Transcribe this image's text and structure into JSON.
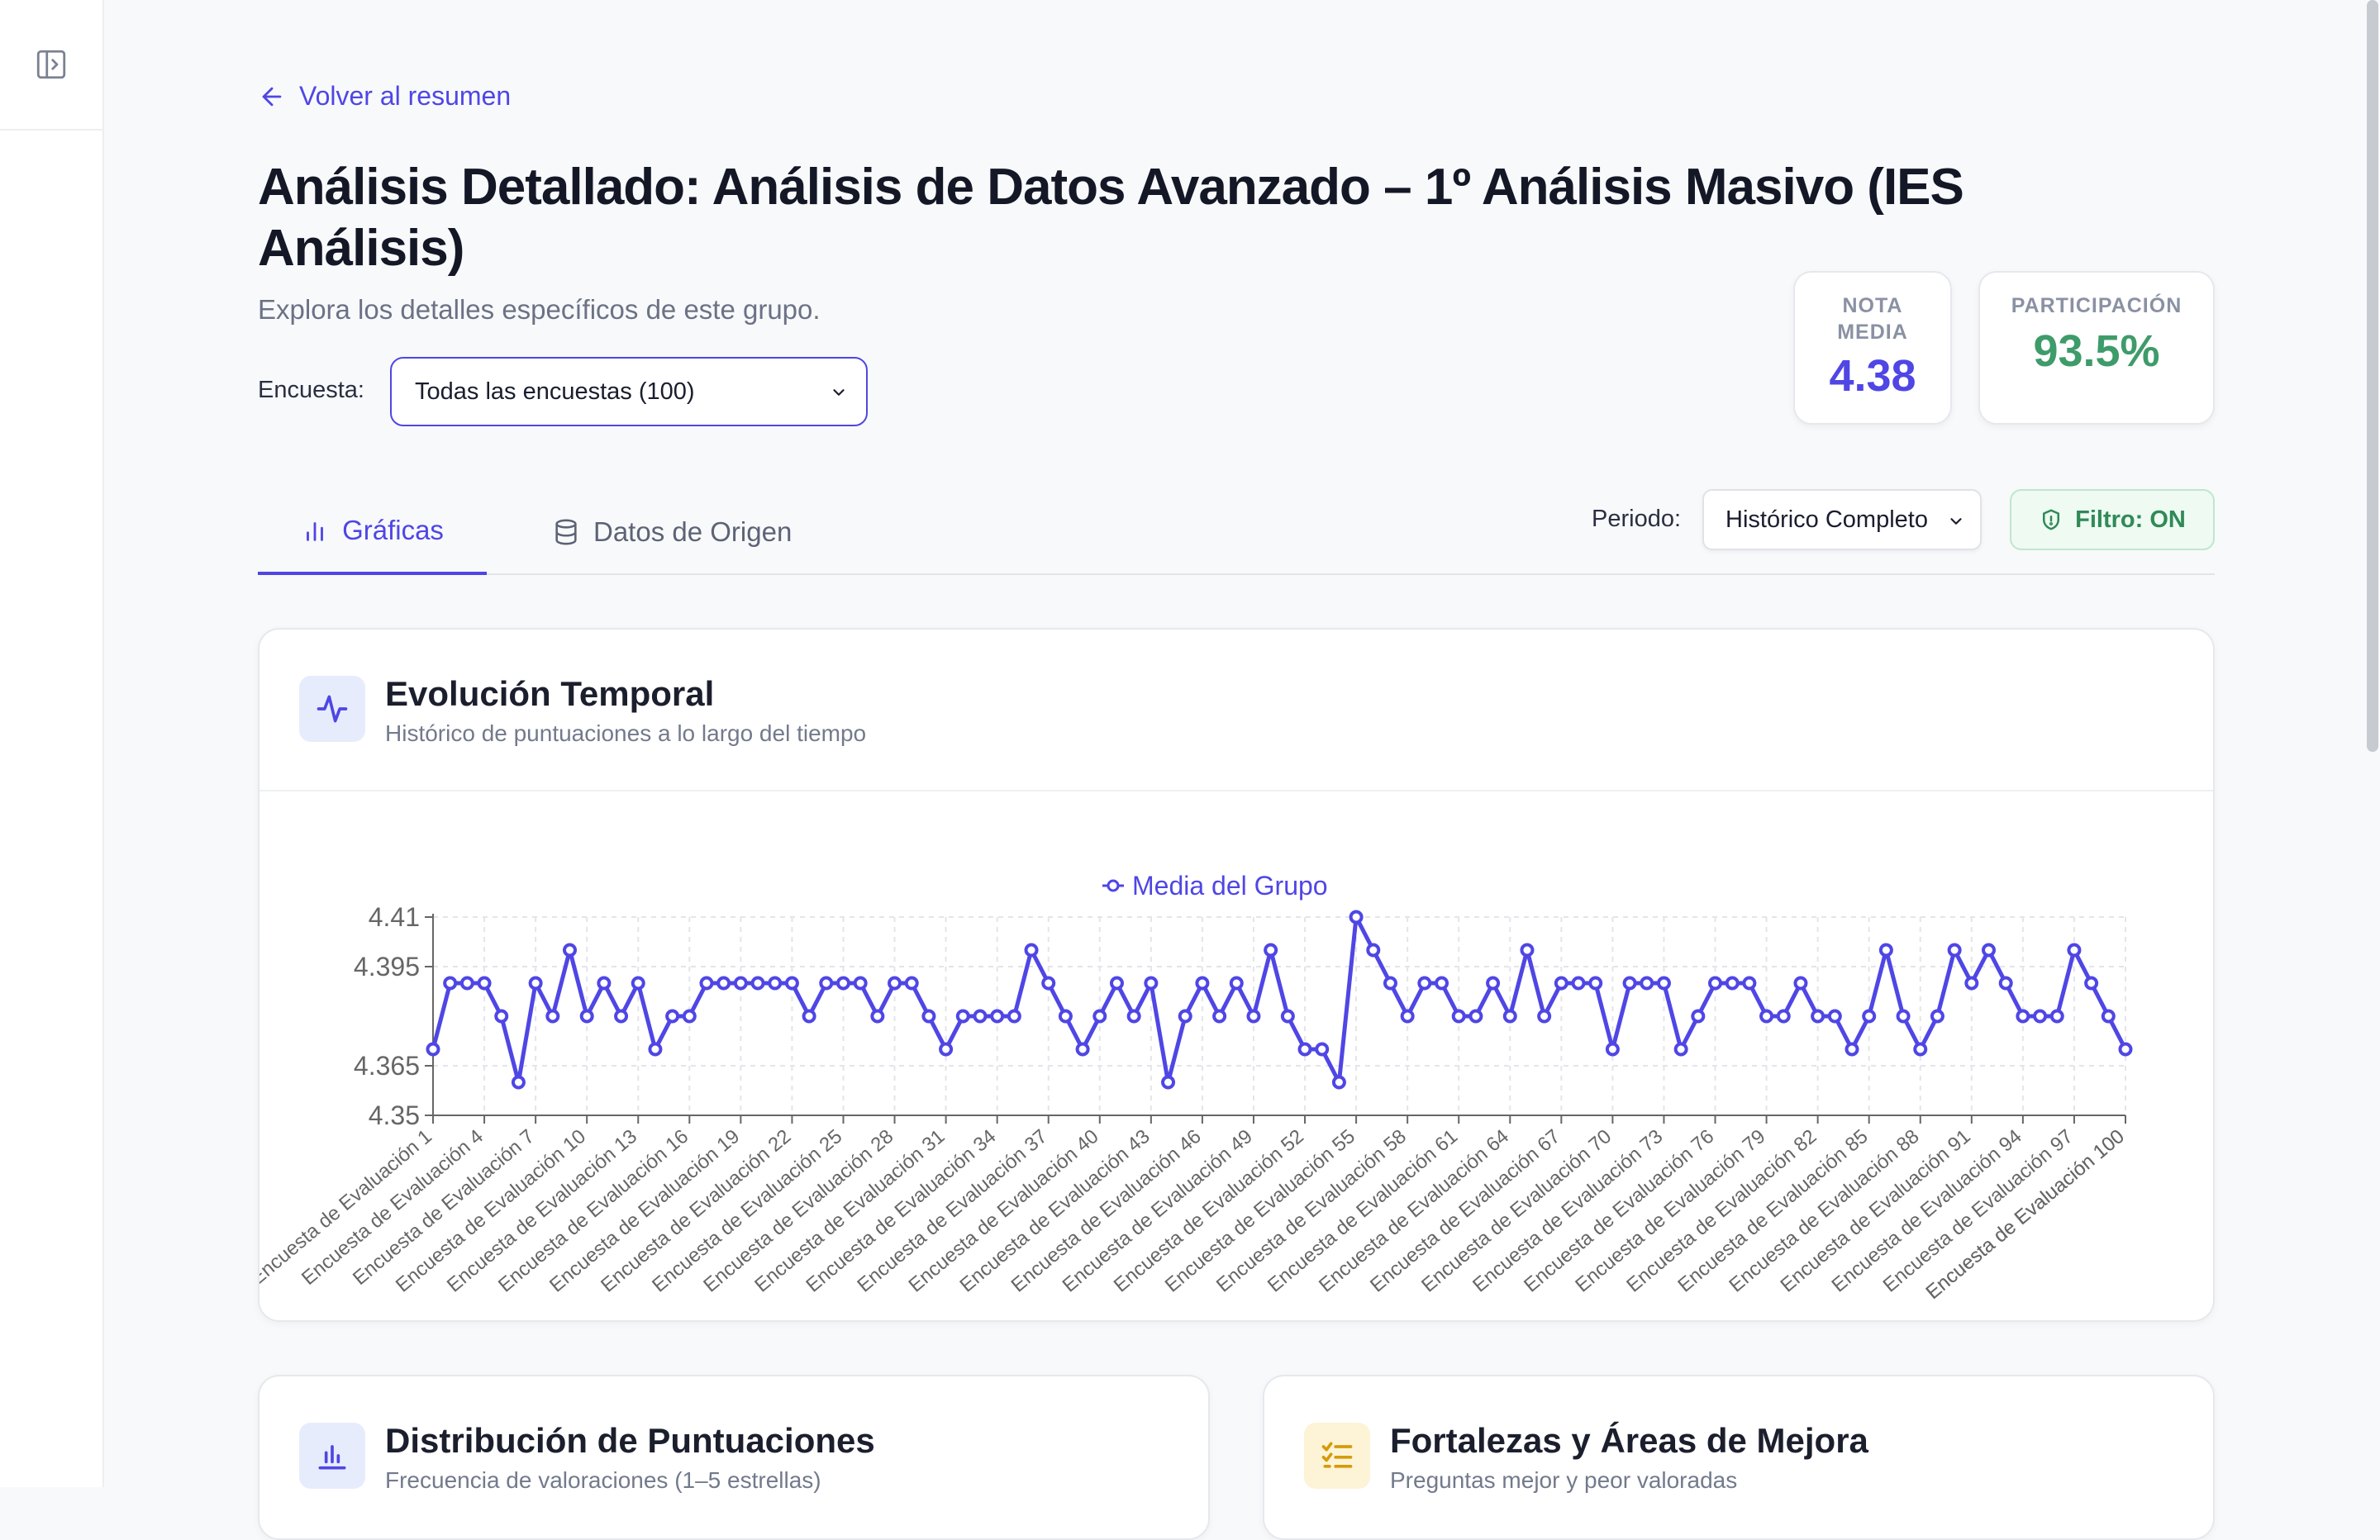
{
  "nav": {
    "back_label": "Volver al resumen"
  },
  "page": {
    "title": "Análisis Detallado: Análisis de Datos Avanzado – 1º Análisis Masivo (IES Análisis)",
    "subtitle": "Explora los detalles específicos de este grupo."
  },
  "survey_filter": {
    "label": "Encuesta:",
    "selected": "Todas las encuestas (100)"
  },
  "stats": {
    "nota_media": {
      "label": "NOTA MEDIA",
      "value": "4.38"
    },
    "participacion": {
      "label": "PARTICIPACIÓN",
      "value": "93.5%"
    }
  },
  "tabs": [
    {
      "label": "Gráficas",
      "active": true,
      "icon": "bar-chart-icon"
    },
    {
      "label": "Datos de Origen",
      "active": false,
      "icon": "database-icon"
    }
  ],
  "period": {
    "label": "Periodo:",
    "selected": "Histórico Completo"
  },
  "filter_badge": {
    "label": "Filtro: ON",
    "icon": "shield-icon"
  },
  "colors": {
    "accent": "#4f46e5",
    "success": "#3e9b6a"
  },
  "cards": {
    "evolution": {
      "title": "Evolución Temporal",
      "subtitle": "Histórico de puntuaciones a lo largo del tiempo",
      "icon": "activity-icon"
    },
    "distribution": {
      "title": "Distribución de Puntuaciones",
      "subtitle": "Frecuencia de valoraciones (1–5 estrellas)",
      "icon": "bar-chart-icon"
    },
    "strengths": {
      "title": "Fortalezas y Áreas de Mejora",
      "subtitle": "Preguntas mejor y peor valoradas",
      "icon": "checklist-icon"
    }
  },
  "chart_data": {
    "type": "line",
    "x_prefix": "Encuesta de Evaluación",
    "x_count": 100,
    "tick_every": 3,
    "series": [
      {
        "name": "Media del Grupo",
        "values": [
          4.37,
          4.39,
          4.39,
          4.39,
          4.38,
          4.36,
          4.39,
          4.38,
          4.4,
          4.38,
          4.39,
          4.38,
          4.39,
          4.37,
          4.38,
          4.38,
          4.39,
          4.39,
          4.39,
          4.39,
          4.39,
          4.39,
          4.38,
          4.39,
          4.39,
          4.39,
          4.38,
          4.39,
          4.39,
          4.38,
          4.37,
          4.38,
          4.38,
          4.38,
          4.38,
          4.4,
          4.39,
          4.38,
          4.37,
          4.38,
          4.39,
          4.38,
          4.39,
          4.36,
          4.38,
          4.39,
          4.38,
          4.39,
          4.38,
          4.4,
          4.38,
          4.37,
          4.37,
          4.36,
          4.41,
          4.4,
          4.39,
          4.38,
          4.39,
          4.39,
          4.38,
          4.38,
          4.39,
          4.38,
          4.4,
          4.38,
          4.39,
          4.39,
          4.39,
          4.37,
          4.39,
          4.39,
          4.39,
          4.37,
          4.38,
          4.39,
          4.39,
          4.39,
          4.38,
          4.38,
          4.39,
          4.38,
          4.38,
          4.37,
          4.38,
          4.4,
          4.38,
          4.37,
          4.38,
          4.4,
          4.39,
          4.4,
          4.39,
          4.38,
          4.38,
          4.38,
          4.4,
          4.39,
          4.38,
          4.37
        ]
      }
    ],
    "yticks": [
      "4.35",
      "4.365",
      "4.395",
      "4.41"
    ],
    "ylim": [
      4.35,
      4.41
    ],
    "grid": true,
    "legend": "top-center"
  }
}
